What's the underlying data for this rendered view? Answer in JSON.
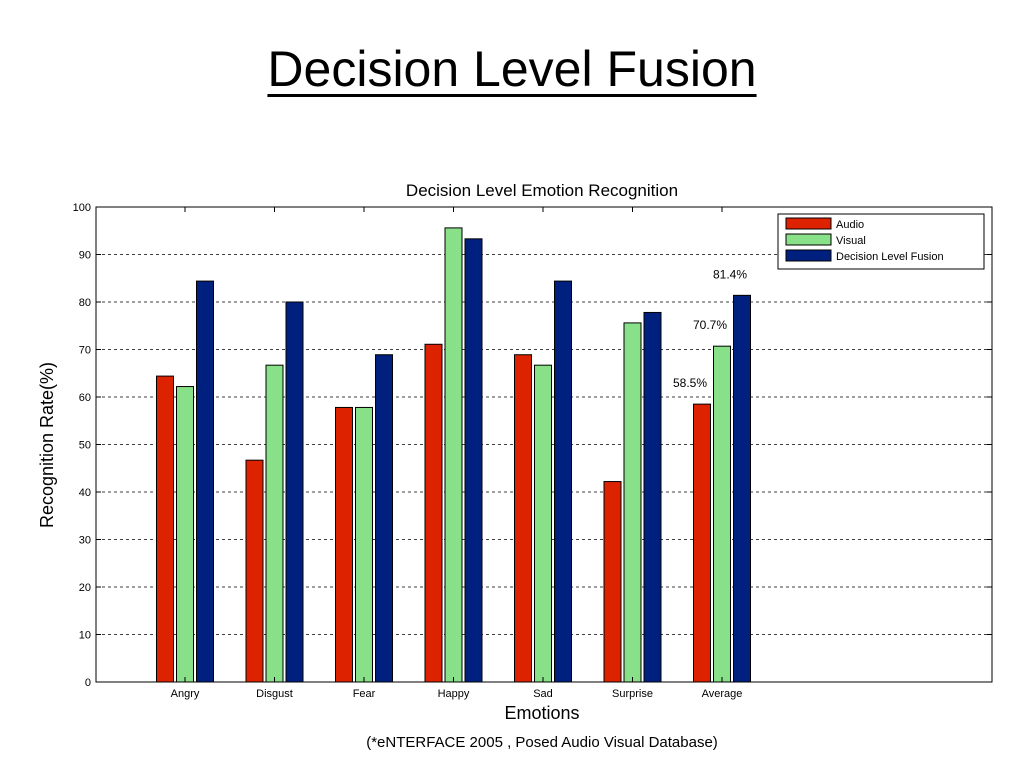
{
  "slide": {
    "title": "Decision Level Fusion",
    "caption": "(*eNTERFACE 2005 , Posed Audio Visual Database)"
  },
  "chart_data": {
    "type": "bar",
    "title": "Decision Level Emotion Recognition",
    "xlabel": "Emotions",
    "ylabel": "Recognition Rate(%)",
    "ylim": [
      0,
      100
    ],
    "yticks": [
      "0",
      "10",
      "20",
      "30",
      "40",
      "50",
      "60",
      "70",
      "80",
      "90",
      "100"
    ],
    "grid": "horizontal-dashed",
    "legend_position": "top-right",
    "categories": [
      "Angry",
      "Disgust",
      "Fear",
      "Happy",
      "Sad",
      "Surprise",
      "Average"
    ],
    "series": [
      {
        "name": "Audio",
        "color": "#dd2200",
        "values": [
          64.4,
          46.7,
          57.8,
          71.1,
          68.9,
          42.2,
          58.5
        ]
      },
      {
        "name": "Visual",
        "color": "#88e088",
        "values": [
          62.2,
          66.7,
          57.8,
          95.6,
          66.7,
          75.6,
          70.7
        ]
      },
      {
        "name": "Decision Level Fusion",
        "color": "#00207f",
        "values": [
          84.4,
          80.0,
          68.9,
          93.3,
          84.4,
          77.8,
          81.4
        ]
      }
    ],
    "annotations": [
      {
        "text": "58.5%",
        "category": "Average",
        "series": "Audio"
      },
      {
        "text": "70.7%",
        "category": "Average",
        "series": "Visual"
      },
      {
        "text": "81.4%",
        "category": "Average",
        "series": "Decision Level Fusion"
      }
    ]
  }
}
